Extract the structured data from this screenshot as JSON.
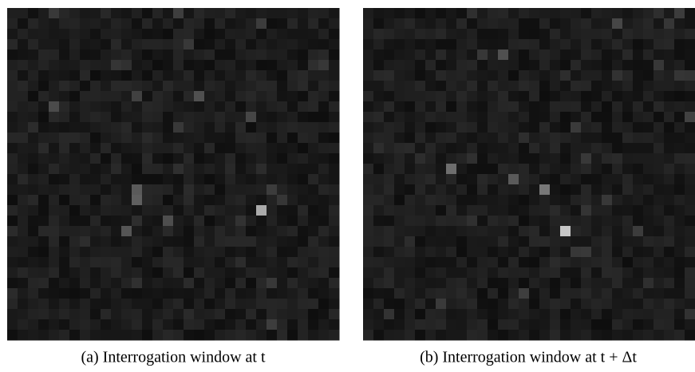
{
  "figures": [
    {
      "caption": "(a) Interrogation window at t"
    },
    {
      "caption": "(b) Interrogation window at t + Δt"
    }
  ]
}
